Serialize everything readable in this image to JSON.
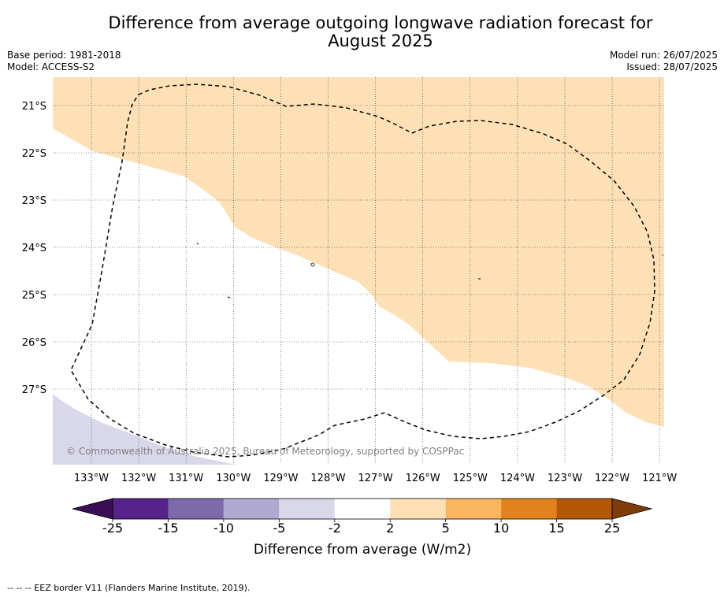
{
  "title_line1": "Difference from average outgoing longwave radiation forecast for",
  "title_line2": "August 2025",
  "base_period": "Base period: 1981-2018",
  "model": "Model: ACCESS-S2",
  "model_run": "Model run: 26/07/2025",
  "issued": "Issued: 28/07/2025",
  "copyright": "© Commonwealth of Australia 2025, Bureau of Meteorology, supported by COSPPac",
  "footnote": "--  --  -- EEZ border V11 (Flanders Marine Institute, 2019).",
  "map": {
    "lat_labels": [
      "21°S",
      "22°S",
      "23°S",
      "24°S",
      "25°S",
      "26°S",
      "27°S"
    ],
    "lon_labels": [
      "133°W",
      "132°W",
      "131°W",
      "130°W",
      "129°W",
      "128°W",
      "127°W",
      "126°W",
      "125°W",
      "124°W",
      "123°W",
      "122°W",
      "121°W"
    ]
  },
  "colorbar": {
    "ticks": [
      "-25",
      "-15",
      "-10",
      "-5",
      "-2",
      "2",
      "5",
      "10",
      "15",
      "25"
    ],
    "label": "Difference from average (W/m2)",
    "colors": [
      "#3b0f55",
      "#56238a",
      "#7d6aab",
      "#b0a9d1",
      "#d9d8ea",
      "#ffffff",
      "#fde0b6",
      "#fbb55e",
      "#e1821c",
      "#b35806",
      "#7f3b08"
    ]
  }
}
